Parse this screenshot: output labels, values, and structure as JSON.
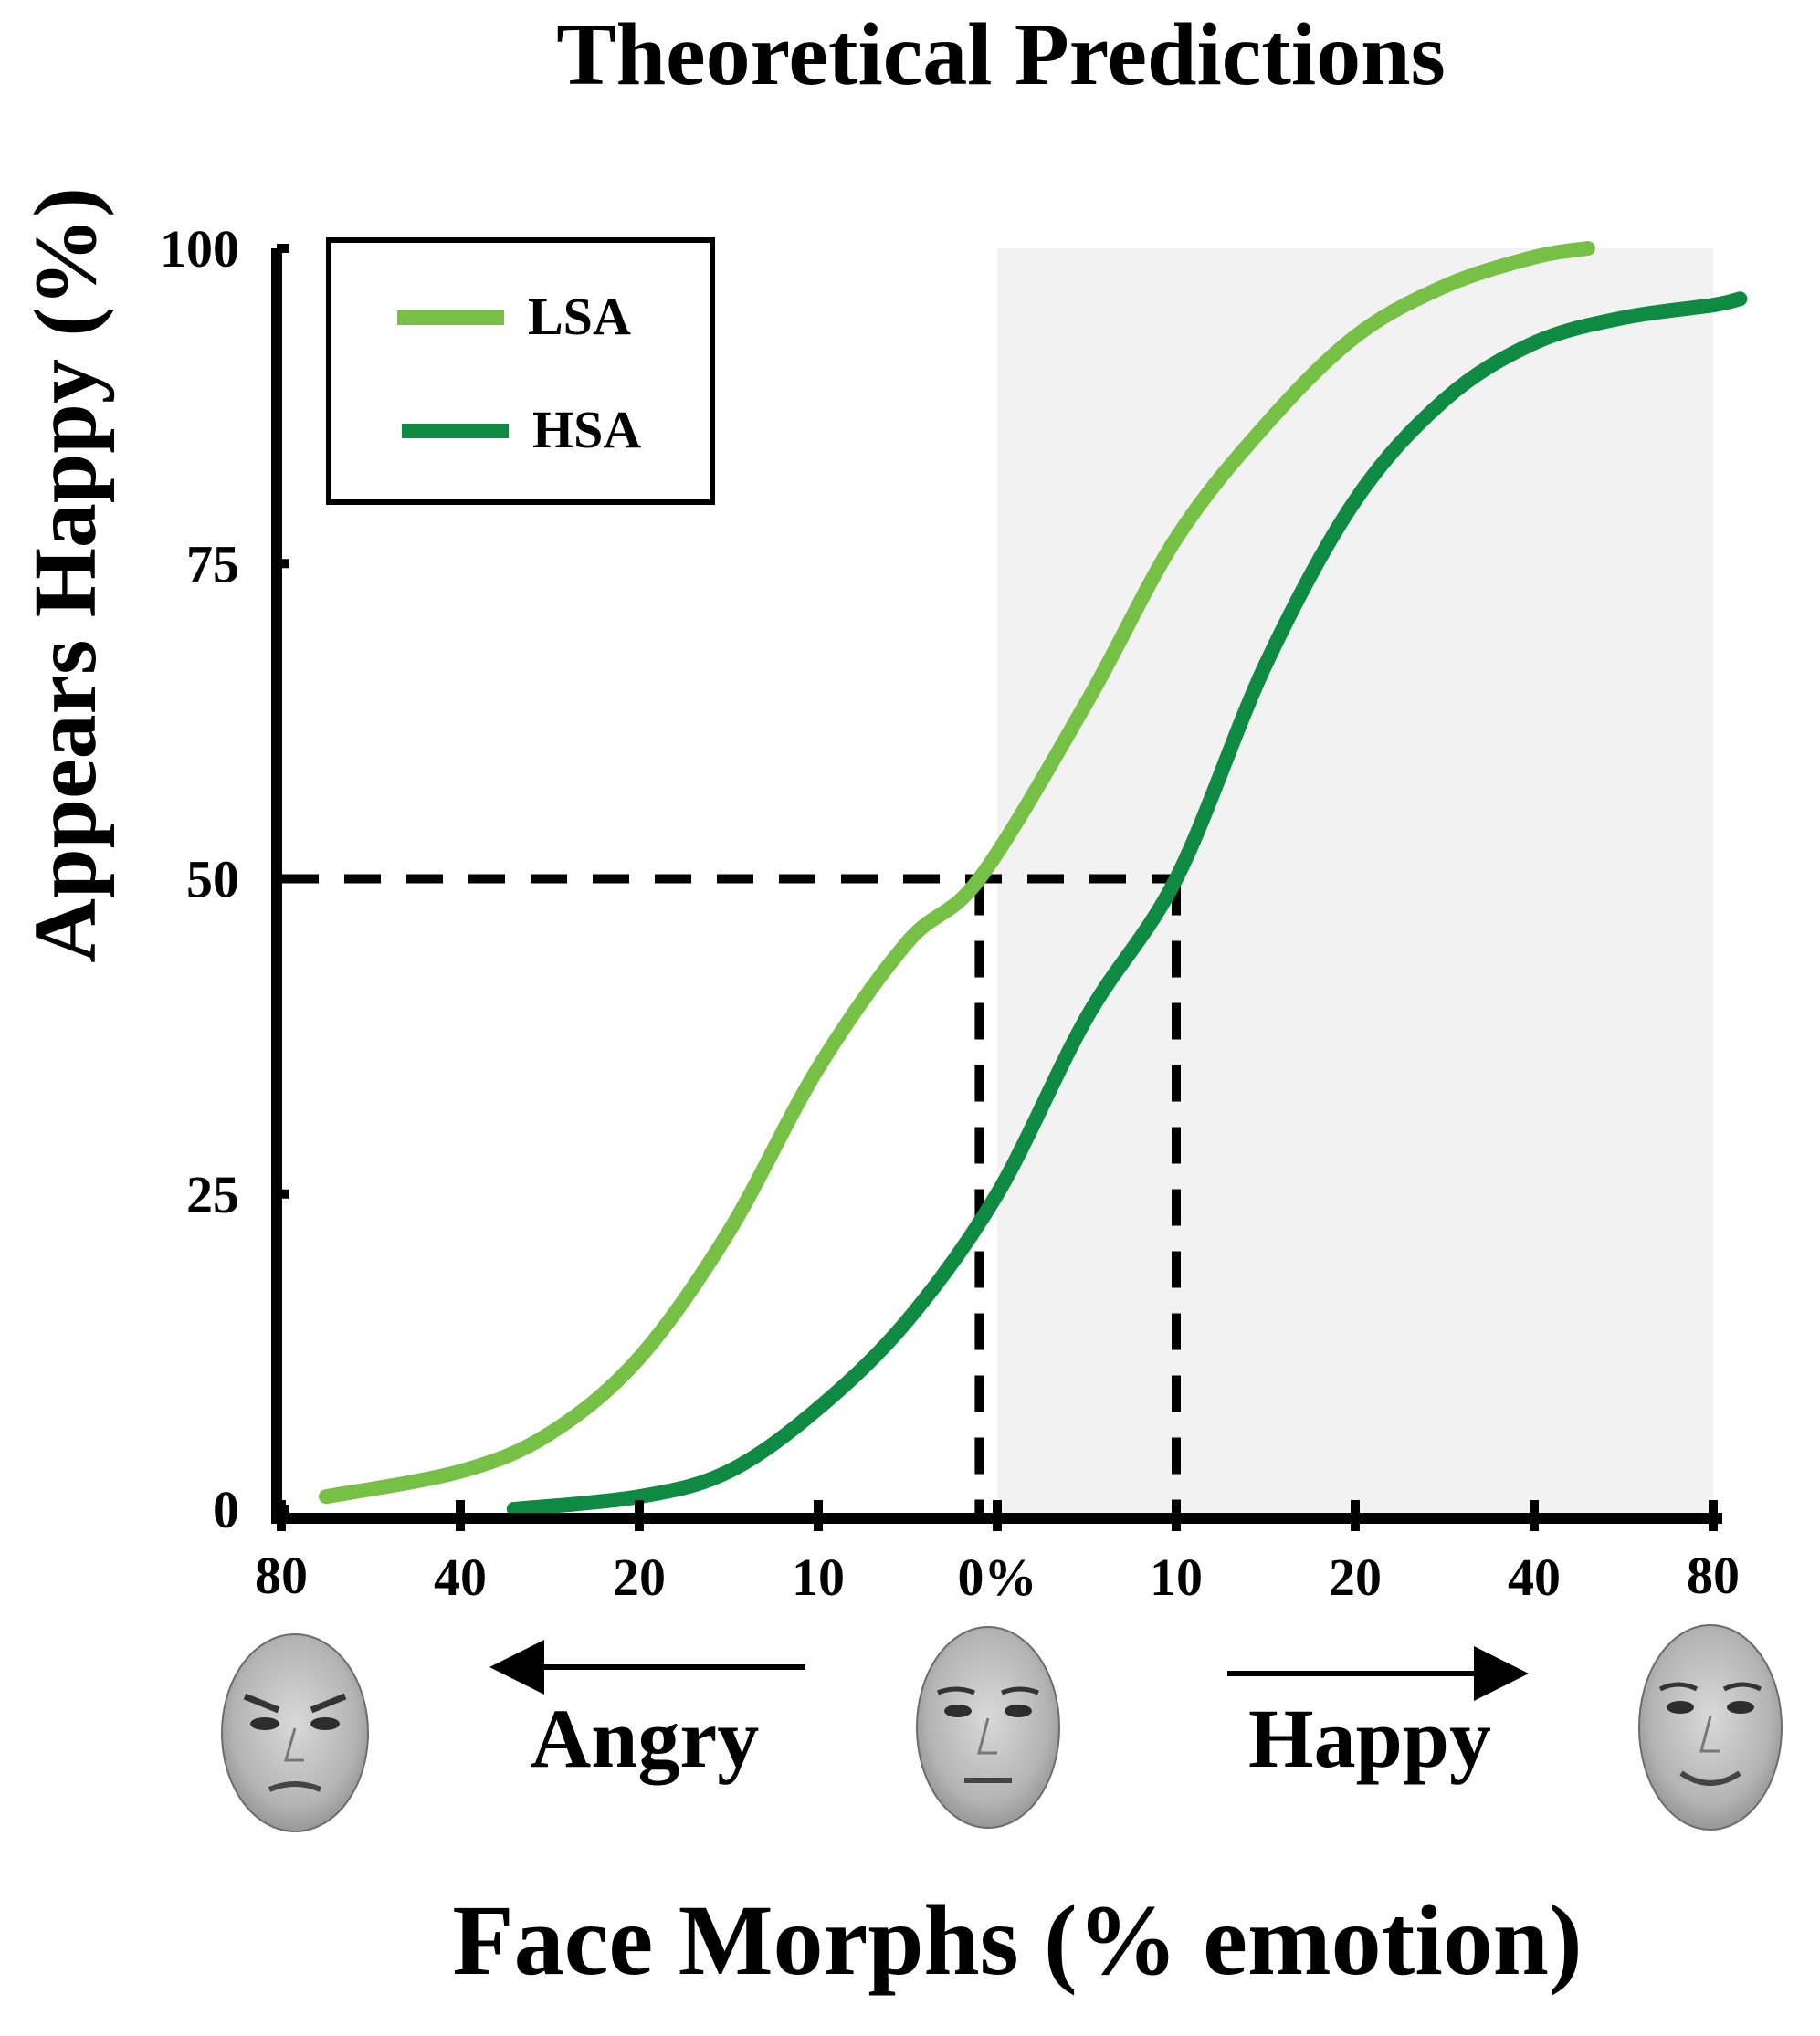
{
  "chart_data": {
    "type": "line",
    "title": "Theoretical Predictions",
    "xlabel": "Face Morphs (% emotion)",
    "ylabel": "Appears Happy (%)",
    "ylim": [
      0,
      100
    ],
    "yticks": [
      0,
      25,
      50,
      75,
      100
    ],
    "x_positions": [
      -4,
      -3,
      -2,
      -1,
      0,
      1,
      2,
      3,
      4
    ],
    "x_tick_labels": [
      "80",
      "40",
      "20",
      "10",
      "0%",
      "10",
      "20",
      "40",
      "80"
    ],
    "shaded_region": {
      "from": 0,
      "to": 4,
      "color": "#f2f2f2",
      "description": "happy side"
    },
    "reference_line_y": 50,
    "series": [
      {
        "name": "LSA",
        "color": "#76c045",
        "x": [
          -3.75,
          -3.0,
          -2.5,
          -2.0,
          -1.5,
          -1.0,
          -0.5,
          -0.1,
          0.5,
          1.0,
          1.5,
          2.0,
          2.5,
          3.0,
          3.3
        ],
        "y": [
          1,
          3,
          6,
          12,
          22,
          35,
          45,
          50,
          64,
          77,
          86,
          93,
          97,
          99.3,
          100
        ],
        "pse_x": -0.1
      },
      {
        "name": "HSA",
        "color": "#0e8a43",
        "x": [
          -2.7,
          -2.0,
          -1.5,
          -1.0,
          -0.5,
          0.0,
          0.5,
          1.0,
          1.5,
          2.0,
          2.5,
          3.0,
          3.5,
          4.0,
          4.15
        ],
        "y": [
          0,
          1,
          3,
          8,
          15,
          25,
          39,
          50,
          67,
          80,
          88,
          92.5,
          94.5,
          95.5,
          96
        ]
      }
    ],
    "pse_x": [
      -0.1,
      1.0
    ],
    "annotations": {
      "angry_label": "Angry",
      "happy_label": "Happy"
    },
    "legend_position": "top-left"
  },
  "faces": [
    {
      "name": "angry-face",
      "label": "80% angry"
    },
    {
      "name": "neutral-face",
      "label": "0% neutral"
    },
    {
      "name": "happy-face",
      "label": "80% happy"
    }
  ]
}
